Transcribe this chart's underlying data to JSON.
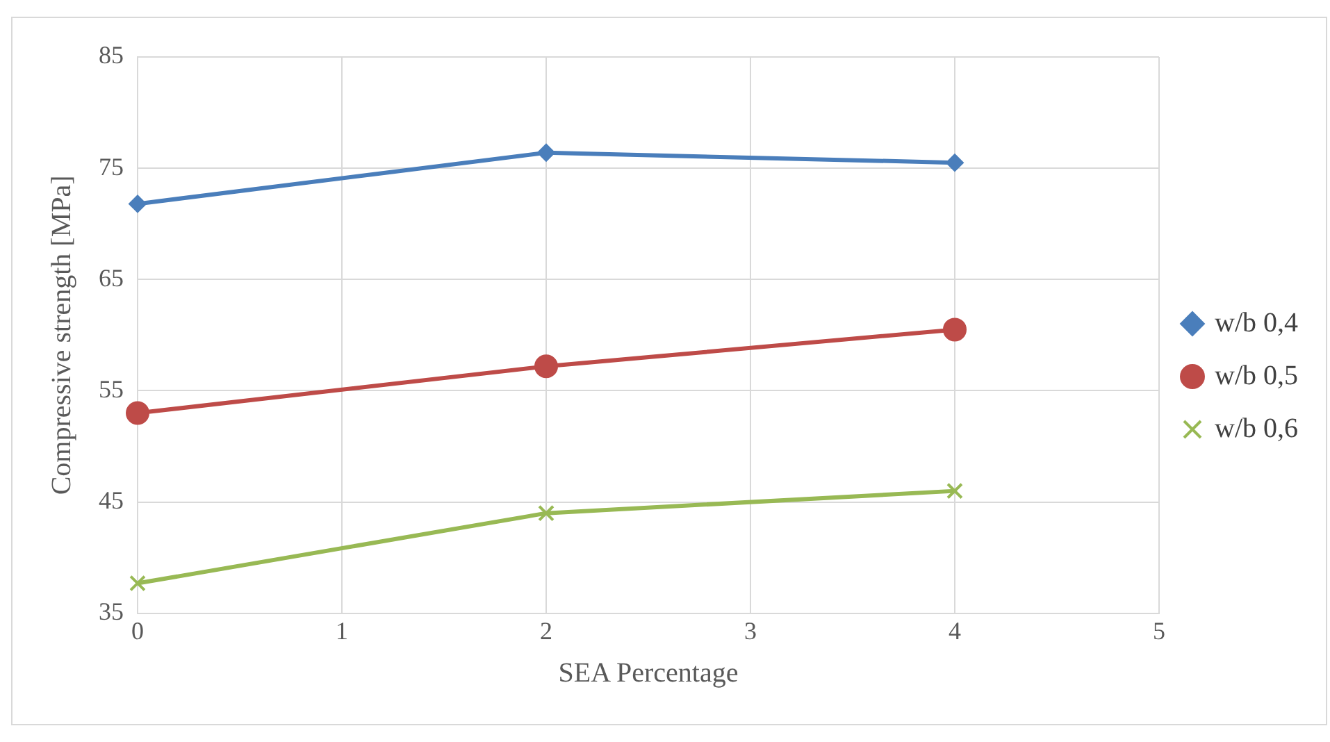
{
  "chart_data": {
    "type": "line",
    "xlabel": "SEA Percentage",
    "ylabel": "Compressive strength [MPa]",
    "x": [
      0,
      2,
      4
    ],
    "xlim": [
      0,
      5
    ],
    "xticks": [
      0,
      1,
      2,
      3,
      4,
      5
    ],
    "ylim": [
      35,
      85
    ],
    "yticks": [
      35,
      45,
      55,
      65,
      75,
      85
    ],
    "grid": true,
    "legend": "right",
    "series": [
      {
        "name": "w/b 0,4",
        "color": "#4a7ebb",
        "marker": "diamond",
        "values": [
          71.8,
          76.4,
          75.5
        ]
      },
      {
        "name": "w/b 0,5",
        "color": "#be4b48",
        "marker": "circle",
        "values": [
          53.0,
          57.2,
          60.5
        ]
      },
      {
        "name": "w/b 0,6",
        "color": "#98b954",
        "marker": "cross",
        "values": [
          37.7,
          44.0,
          46.0
        ]
      }
    ]
  }
}
